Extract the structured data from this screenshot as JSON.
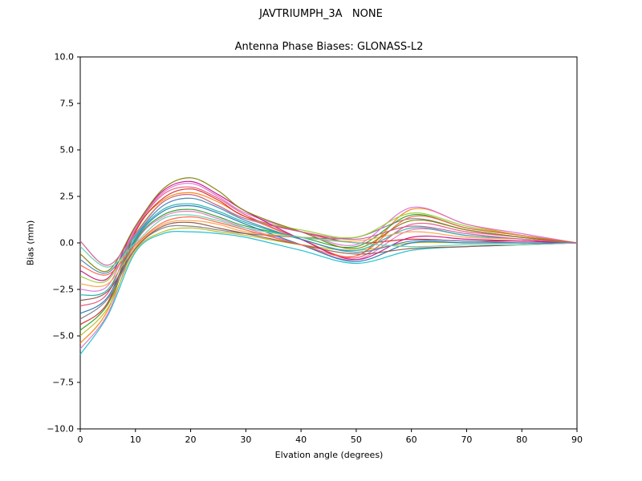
{
  "figure": {
    "suptitle": "JAVTRIUMPH_3A   NONE",
    "title": "Antenna Phase Biases: GLONASS-L2",
    "xlabel": "Elvation angle (degrees)",
    "ylabel": "Bias (mm)",
    "background": "#ffffff",
    "axes_color": "#000000"
  },
  "chart_data": {
    "type": "line",
    "title": "Antenna Phase Biases: GLONASS-L2",
    "xlabel": "Elvation angle (degrees)",
    "ylabel": "Bias (mm)",
    "xlim": [
      0,
      90
    ],
    "ylim": [
      -10,
      10
    ],
    "x_tick_values": [
      0,
      10,
      20,
      30,
      40,
      50,
      60,
      70,
      80,
      90
    ],
    "x_tick_labels": [
      "0",
      "10",
      "20",
      "30",
      "40",
      "50",
      "60",
      "70",
      "80",
      "90"
    ],
    "y_tick_values": [
      -10,
      -7.5,
      -5,
      -2.5,
      0,
      2.5,
      5,
      7.5,
      10
    ],
    "y_tick_labels": [
      "−10.0",
      "−7.5",
      "−5.0",
      "−2.5",
      "0.0",
      "2.5",
      "5.0",
      "7.5",
      "10.0"
    ],
    "grid": false,
    "legend": "none",
    "x": [
      0,
      5,
      10,
      15,
      20,
      25,
      30,
      40,
      50,
      60,
      70,
      80,
      90
    ],
    "series": [
      {
        "color": "#17becf",
        "values": [
          -6.0,
          -3.9,
          -0.5,
          0.5,
          0.6,
          0.5,
          0.3,
          -0.4,
          -1.1,
          -0.4,
          -0.2,
          -0.1,
          0
        ]
      },
      {
        "color": "#e377c2",
        "values": [
          -5.7,
          -3.8,
          0.0,
          1.4,
          1.7,
          1.3,
          0.8,
          -0.1,
          -0.9,
          0.7,
          0.4,
          0.2,
          0
        ]
      },
      {
        "color": "#ff7f0e",
        "values": [
          -5.4,
          -3.6,
          0.6,
          2.3,
          2.7,
          2.2,
          1.4,
          0.2,
          -0.7,
          1.8,
          1.0,
          0.4,
          0
        ]
      },
      {
        "color": "#bcbd22",
        "values": [
          -5.0,
          -3.5,
          -0.4,
          0.6,
          0.8,
          0.6,
          0.4,
          -0.1,
          -0.4,
          0.0,
          0.0,
          0.0,
          0
        ]
      },
      {
        "color": "#2ca02c",
        "values": [
          -4.7,
          -3.3,
          0.1,
          1.5,
          1.8,
          1.4,
          0.9,
          0.3,
          -0.2,
          1.5,
          0.8,
          0.4,
          0
        ]
      },
      {
        "color": "#d62728",
        "values": [
          -4.4,
          -3.2,
          0.6,
          2.4,
          2.9,
          2.3,
          1.4,
          0.6,
          0.0,
          0.2,
          0.1,
          0.1,
          0
        ]
      },
      {
        "color": "#7f7f7f",
        "values": [
          -4.1,
          -3.0,
          -0.3,
          0.8,
          0.9,
          0.7,
          0.5,
          0.3,
          0.3,
          1.3,
          0.7,
          0.3,
          0
        ]
      },
      {
        "color": "#1f77b4",
        "values": [
          -3.8,
          -2.9,
          0.2,
          1.7,
          2.0,
          1.6,
          1.0,
          -0.1,
          -1.0,
          0.0,
          0.0,
          0.0,
          0
        ]
      },
      {
        "color": "#e75480",
        "values": [
          -3.4,
          -2.7,
          0.7,
          2.6,
          3.0,
          2.4,
          1.5,
          0.2,
          -0.8,
          1.0,
          0.6,
          0.3,
          0
        ]
      },
      {
        "color": "#8c564b",
        "values": [
          -3.1,
          -2.6,
          -0.3,
          0.9,
          1.1,
          0.8,
          0.5,
          -0.1,
          -0.6,
          -0.3,
          -0.2,
          -0.1,
          0
        ]
      },
      {
        "color": "#20b2aa",
        "values": [
          -2.8,
          -2.5,
          0.3,
          1.8,
          2.1,
          1.7,
          1.1,
          0.2,
          -0.4,
          0.8,
          0.4,
          0.2,
          0
        ]
      },
      {
        "color": "#da70d6",
        "values": [
          -2.5,
          -2.3,
          0.8,
          2.7,
          3.2,
          2.5,
          1.6,
          0.6,
          -0.1,
          1.9,
          1.0,
          0.5,
          0
        ]
      },
      {
        "color": "#ffa040",
        "values": [
          -2.2,
          -2.2,
          -0.2,
          1.0,
          1.2,
          1.0,
          0.6,
          0.3,
          0.1,
          0.6,
          0.3,
          0.2,
          0
        ]
      },
      {
        "color": "#9acd32",
        "values": [
          -1.8,
          -2.0,
          0.5,
          2.2,
          2.6,
          2.0,
          1.3,
          0.7,
          0.3,
          1.6,
          0.9,
          0.4,
          0
        ]
      },
      {
        "color": "#c71585",
        "values": [
          -1.5,
          -1.9,
          0.9,
          2.8,
          3.3,
          2.6,
          1.7,
          0.2,
          -0.9,
          0.3,
          0.2,
          0.1,
          0
        ]
      },
      {
        "color": "#ff6347",
        "values": [
          -1.2,
          -1.7,
          -0.1,
          1.1,
          1.4,
          1.1,
          0.7,
          -0.1,
          -0.7,
          1.4,
          0.8,
          0.4,
          0
        ]
      },
      {
        "color": "#4682b4",
        "values": [
          -0.9,
          -1.6,
          0.4,
          2.0,
          2.4,
          1.9,
          1.2,
          0.2,
          -0.5,
          0.1,
          0.1,
          0.0,
          0
        ]
      },
      {
        "color": "#808000",
        "values": [
          -0.6,
          -1.5,
          0.9,
          2.9,
          3.5,
          2.8,
          1.7,
          0.6,
          -0.3,
          1.2,
          0.7,
          0.3,
          0
        ]
      },
      {
        "color": "#66cdaa",
        "values": [
          -0.2,
          -1.3,
          0.0,
          1.3,
          1.5,
          1.2,
          0.8,
          0.3,
          0.0,
          -0.2,
          -0.1,
          -0.1,
          0
        ]
      },
      {
        "color": "#cd5c9c",
        "values": [
          0.1,
          -1.2,
          0.5,
          2.2,
          2.6,
          2.0,
          1.3,
          0.6,
          0.2,
          0.9,
          0.5,
          0.2,
          0
        ]
      }
    ]
  }
}
